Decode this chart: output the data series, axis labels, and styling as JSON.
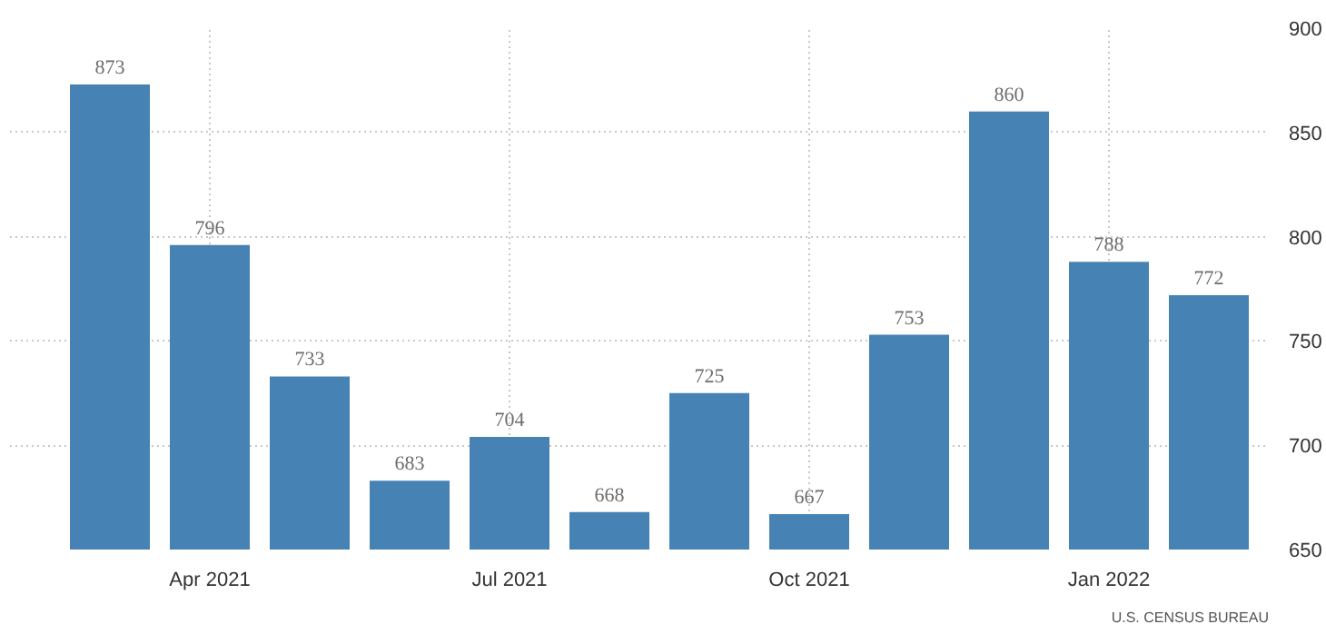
{
  "chart_data": {
    "type": "bar",
    "categories": [
      null,
      "Apr 2021",
      null,
      null,
      "Jul 2021",
      null,
      null,
      "Oct 2021",
      null,
      null,
      "Jan 2022",
      null
    ],
    "values": [
      873,
      796,
      733,
      683,
      704,
      668,
      725,
      667,
      753,
      860,
      788,
      772
    ],
    "color": "#4682b4",
    "ylim": [
      650,
      900
    ],
    "yticks": [
      650,
      700,
      750,
      800,
      850,
      900
    ],
    "grid": true,
    "data_labels": true,
    "annotations": [
      "U.S. CENSUS BUREAU"
    ]
  }
}
